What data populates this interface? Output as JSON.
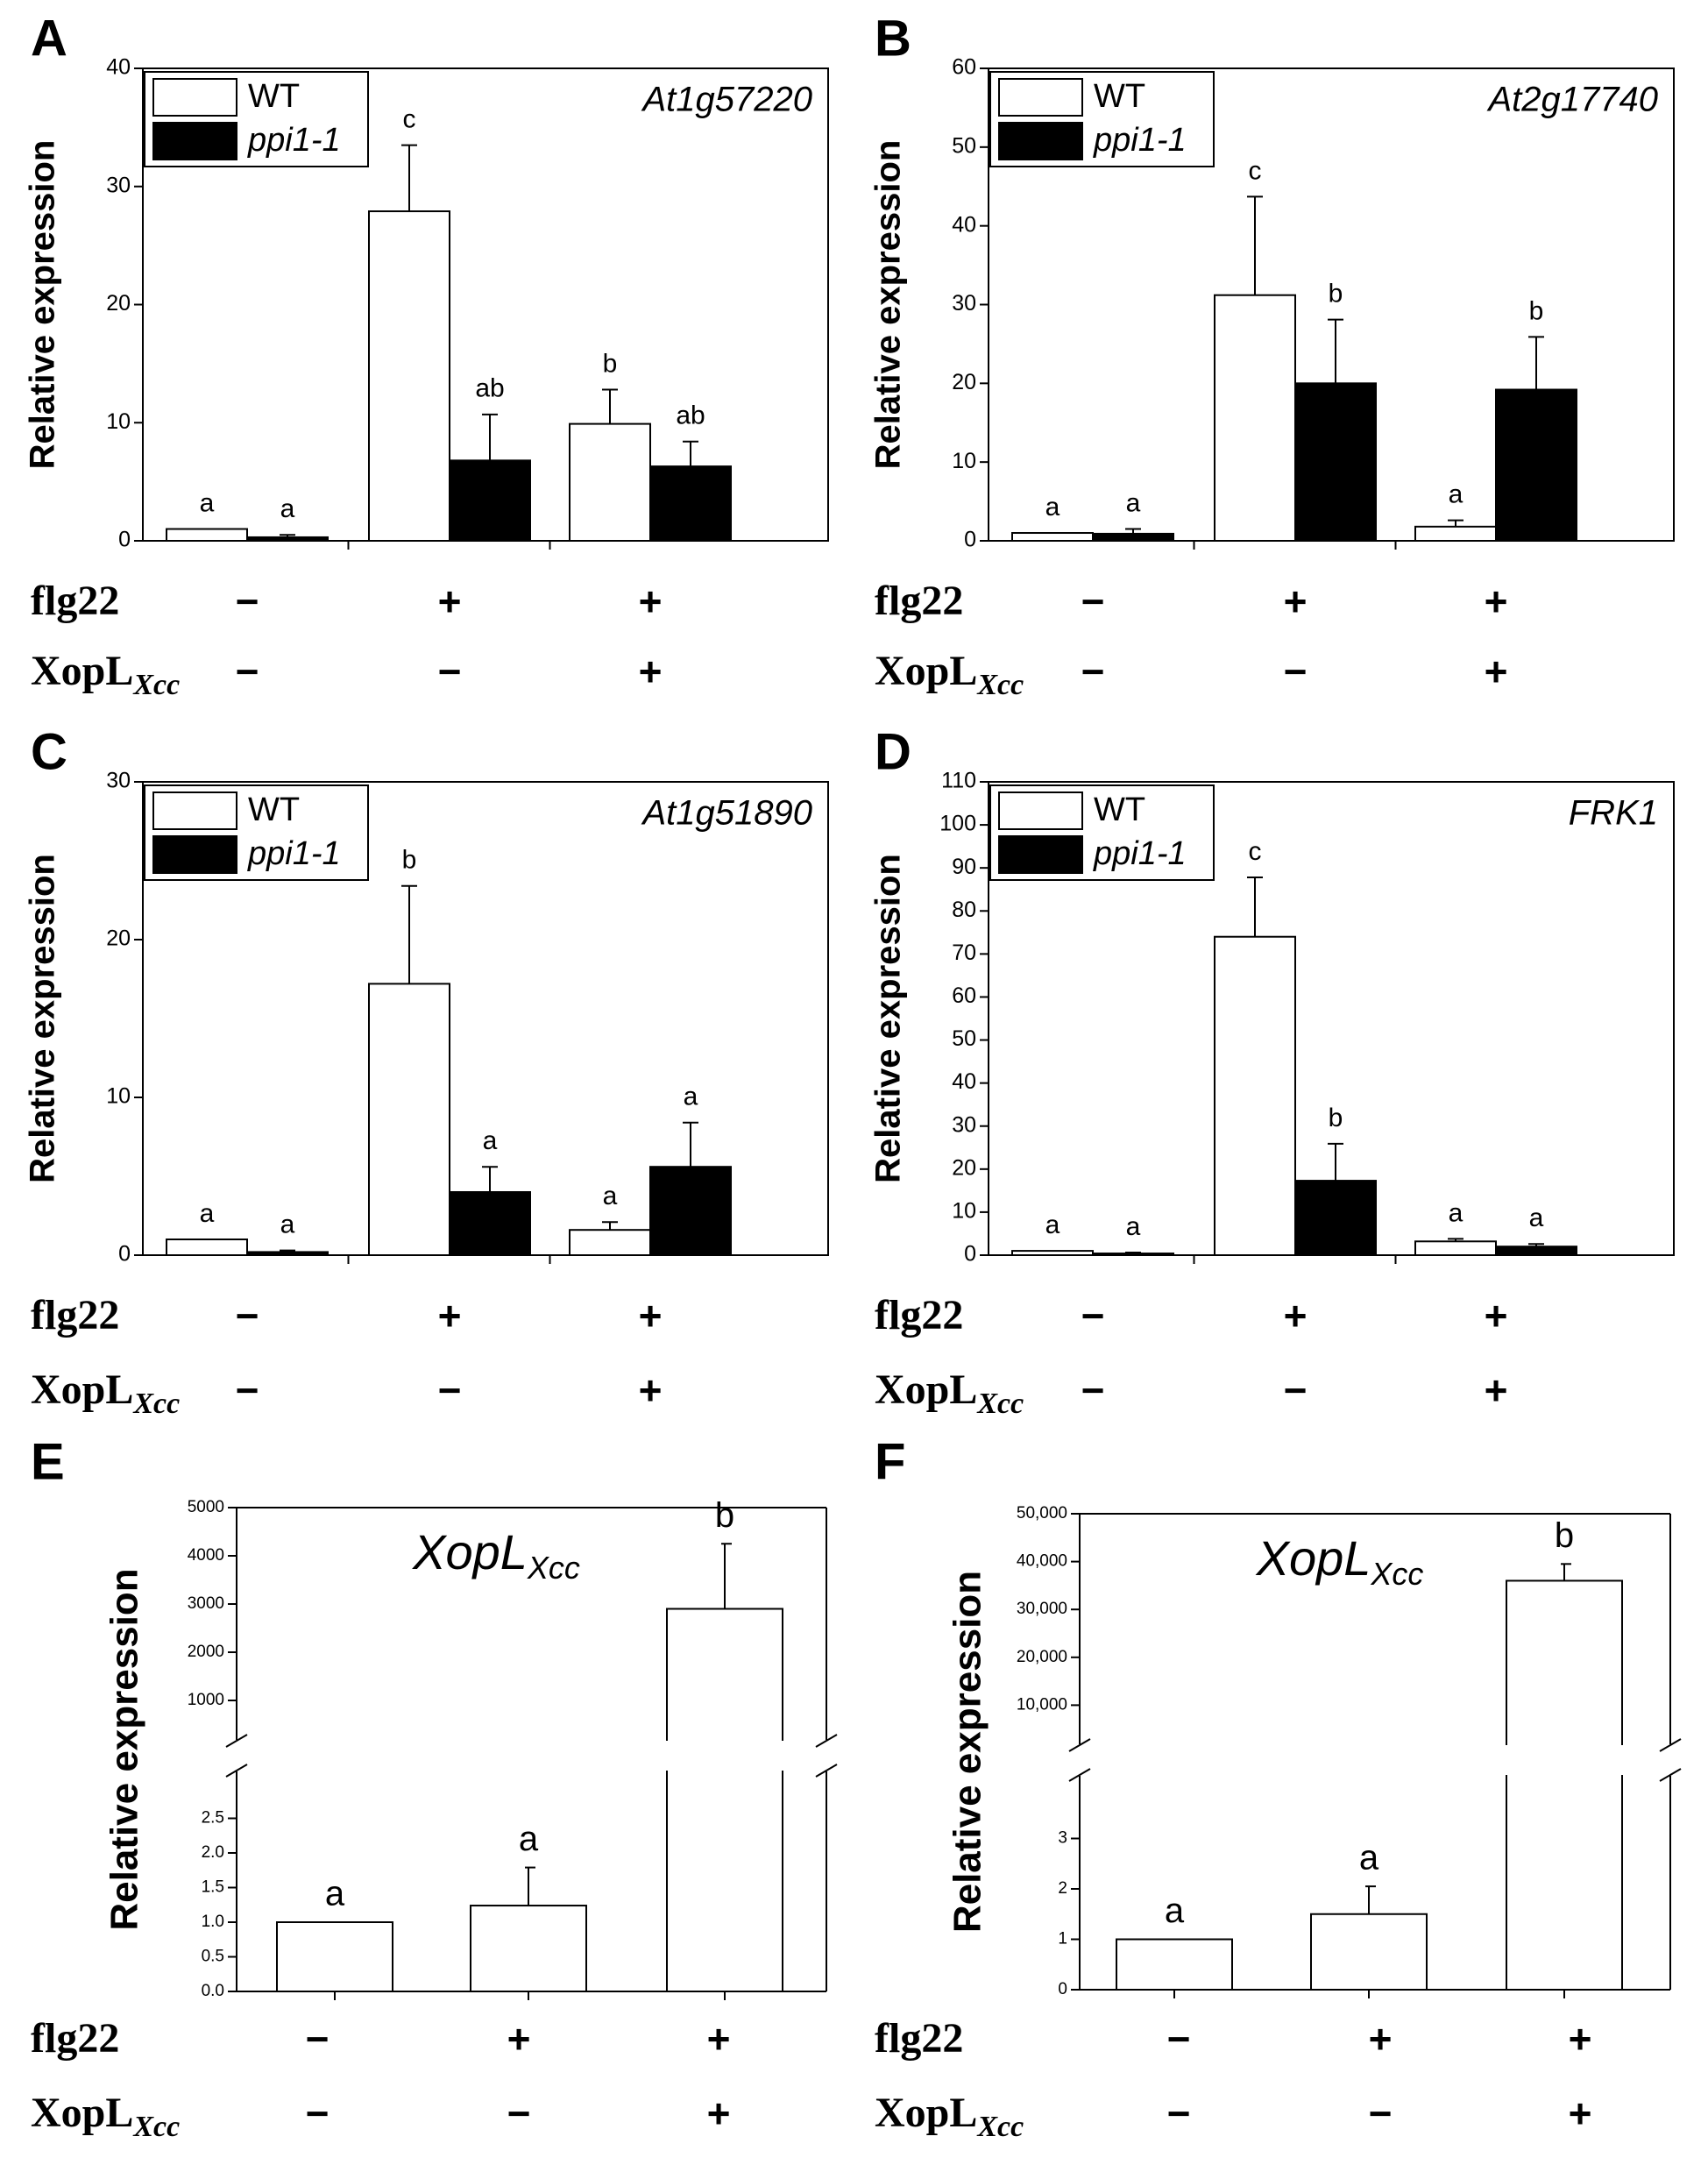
{
  "figure": {
    "treatment_labels": {
      "flg22": "flg22",
      "xopl_main": "XopL",
      "xopl_sub": "Xcc"
    },
    "colors": {
      "wt": "#ffffff",
      "ppi": "#000000",
      "line": "#000000"
    }
  },
  "chart_data": [
    {
      "panel": "A",
      "type": "bar",
      "gene": "At1g57220",
      "ylabel": "Relative expression",
      "ylim": [
        0,
        40
      ],
      "yticks": [
        0,
        10,
        20,
        30,
        40
      ],
      "legend": [
        "WT",
        "ppi1-1"
      ],
      "legend_position": "top-left",
      "groups": [
        {
          "flg22": "−",
          "xopl": "−"
        },
        {
          "flg22": "+",
          "xopl": "−"
        },
        {
          "flg22": "+",
          "xopl": "+"
        }
      ],
      "series": [
        {
          "name": "WT",
          "values": [
            1.0,
            27.9,
            9.9
          ],
          "errors": [
            0,
            5.6,
            2.9
          ],
          "letters": [
            "a",
            "c",
            "b"
          ]
        },
        {
          "name": "ppi1-1",
          "values": [
            0.3,
            6.8,
            6.3
          ],
          "errors": [
            0.2,
            3.9,
            2.1
          ],
          "letters": [
            "a",
            "ab",
            "ab"
          ]
        }
      ]
    },
    {
      "panel": "B",
      "type": "bar",
      "gene": "At2g17740",
      "ylabel": "Relative expression",
      "ylim": [
        0,
        60
      ],
      "yticks": [
        0,
        10,
        20,
        30,
        40,
        50,
        60
      ],
      "legend": [
        "WT",
        "ppi1-1"
      ],
      "legend_position": "top-left",
      "groups": [
        {
          "flg22": "−",
          "xopl": "−"
        },
        {
          "flg22": "+",
          "xopl": "−"
        },
        {
          "flg22": "+",
          "xopl": "+"
        }
      ],
      "series": [
        {
          "name": "WT",
          "values": [
            1.0,
            31.2,
            1.8
          ],
          "errors": [
            0,
            12.5,
            0.8
          ],
          "letters": [
            "a",
            "c",
            "a"
          ]
        },
        {
          "name": "ppi1-1",
          "values": [
            0.9,
            20.0,
            19.2
          ],
          "errors": [
            0.6,
            8.1,
            6.7
          ],
          "letters": [
            "a",
            "b",
            "b"
          ]
        }
      ]
    },
    {
      "panel": "C",
      "type": "bar",
      "gene": "At1g51890",
      "ylabel": "Relative expression",
      "ylim": [
        0,
        30
      ],
      "yticks": [
        0,
        10,
        20,
        30
      ],
      "legend": [
        "WT",
        "ppi1-1"
      ],
      "legend_position": "top-left",
      "groups": [
        {
          "flg22": "−",
          "xopl": "−"
        },
        {
          "flg22": "+",
          "xopl": "−"
        },
        {
          "flg22": "+",
          "xopl": "+"
        }
      ],
      "series": [
        {
          "name": "WT",
          "values": [
            1.0,
            17.2,
            1.6
          ],
          "errors": [
            0,
            6.2,
            0.5
          ],
          "letters": [
            "a",
            "b",
            "a"
          ]
        },
        {
          "name": "ppi1-1",
          "values": [
            0.2,
            4.0,
            5.6
          ],
          "errors": [
            0.1,
            1.6,
            2.8
          ],
          "letters": [
            "a",
            "a",
            "a"
          ]
        }
      ]
    },
    {
      "panel": "D",
      "type": "bar",
      "gene": "FRK1",
      "ylabel": "Relative expression",
      "ylim": [
        0,
        110
      ],
      "yticks": [
        0,
        10,
        20,
        30,
        40,
        50,
        60,
        70,
        80,
        90,
        100,
        110
      ],
      "legend": [
        "WT",
        "ppi1-1"
      ],
      "legend_position": "top-left",
      "groups": [
        {
          "flg22": "−",
          "xopl": "−"
        },
        {
          "flg22": "+",
          "xopl": "−"
        },
        {
          "flg22": "+",
          "xopl": "+"
        }
      ],
      "series": [
        {
          "name": "WT",
          "values": [
            1.0,
            74.0,
            3.2
          ],
          "errors": [
            0,
            13.8,
            0.6
          ],
          "letters": [
            "a",
            "c",
            "a"
          ]
        },
        {
          "name": "ppi1-1",
          "values": [
            0.4,
            17.3,
            2.0
          ],
          "errors": [
            0.2,
            8.6,
            0.6
          ],
          "letters": [
            "a",
            "b",
            "a"
          ]
        }
      ]
    },
    {
      "panel": "E",
      "type": "bar",
      "title_main": "XopL",
      "title_sub": "Xcc",
      "ylabel": "Relative expression",
      "y_break": true,
      "ylim_lower": [
        0,
        3.0
      ],
      "yticks_lower": [
        "0.0",
        "0.5",
        "1.0",
        "1.5",
        "2.0",
        "2.5"
      ],
      "ylim_upper": [
        0,
        5000
      ],
      "yticks_upper": [
        "1000",
        "2000",
        "3000",
        "4000",
        "5000"
      ],
      "groups": [
        {
          "flg22": "−",
          "xopl": "−"
        },
        {
          "flg22": "+",
          "xopl": "−"
        },
        {
          "flg22": "+",
          "xopl": "+"
        }
      ],
      "values": [
        1.0,
        1.24,
        2900
      ],
      "errors": [
        0,
        0.55,
        1350
      ],
      "letters": [
        "a",
        "a",
        "b"
      ]
    },
    {
      "panel": "F",
      "type": "bar",
      "title_main": "XopL",
      "title_sub": "Xcc",
      "ylabel": "Relative expression",
      "y_break": true,
      "ylim_lower": [
        0,
        4.0
      ],
      "yticks_lower": [
        "0",
        "1",
        "2",
        "3"
      ],
      "ylim_upper": [
        0,
        50000
      ],
      "yticks_upper": [
        "10,000",
        "20,000",
        "30,000",
        "40,000",
        "50,000"
      ],
      "groups": [
        {
          "flg22": "−",
          "xopl": "−"
        },
        {
          "flg22": "+",
          "xopl": "−"
        },
        {
          "flg22": "+",
          "xopl": "+"
        }
      ],
      "values": [
        1.0,
        1.5,
        36000
      ],
      "errors": [
        0,
        0.55,
        3500
      ],
      "letters": [
        "a",
        "a",
        "b"
      ]
    }
  ]
}
